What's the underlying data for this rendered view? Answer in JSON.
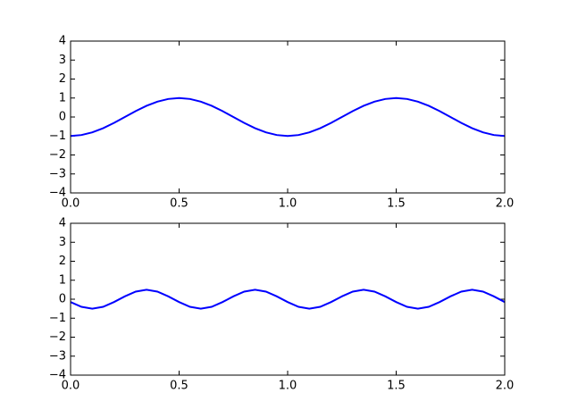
{
  "chart_data": [
    {
      "type": "line",
      "x": [
        0,
        0.05,
        0.1,
        0.15,
        0.2,
        0.25,
        0.3,
        0.35,
        0.4,
        0.45,
        0.5,
        0.55,
        0.6,
        0.65,
        0.7,
        0.75,
        0.8,
        0.85,
        0.9,
        0.95,
        1,
        1.05,
        1.1,
        1.15,
        1.2,
        1.25,
        1.3,
        1.35,
        1.4,
        1.45,
        1.5,
        1.55,
        1.6,
        1.65,
        1.7,
        1.75,
        1.8,
        1.85,
        1.9,
        1.95,
        2
      ],
      "series": [
        {
          "color": "#0000ff",
          "values": [
            -1,
            -0.95,
            -0.81,
            -0.59,
            -0.31,
            0,
            0.31,
            0.59,
            0.81,
            0.95,
            1,
            0.95,
            0.81,
            0.59,
            0.31,
            0,
            -0.31,
            -0.59,
            -0.81,
            -0.95,
            -1,
            -0.95,
            -0.81,
            -0.59,
            -0.31,
            0,
            0.31,
            0.59,
            0.81,
            0.95,
            1,
            0.95,
            0.81,
            0.59,
            0.31,
            0,
            -0.31,
            -0.59,
            -0.81,
            -0.95,
            -1
          ]
        }
      ],
      "xlim": [
        0,
        2
      ],
      "xticks": [
        {
          "value": 0,
          "label": "0.0"
        },
        0.5,
        {
          "value": 1,
          "label": "1.0"
        },
        1.5,
        {
          "value": 2,
          "label": "2.0"
        }
      ],
      "ylim": [
        -4,
        4
      ],
      "yticks": [
        {
          "value": -4,
          "label": "−4"
        },
        {
          "value": -3,
          "label": "−3"
        },
        {
          "value": -2,
          "label": "−2"
        },
        {
          "value": -1,
          "label": "−1"
        },
        0,
        1,
        2,
        3,
        4
      ]
    },
    {
      "type": "line",
      "x": [
        0,
        0.05,
        0.1,
        0.15,
        0.2,
        0.25,
        0.3,
        0.35,
        0.4,
        0.45,
        0.5,
        0.55,
        0.6,
        0.65,
        0.7,
        0.75,
        0.8,
        0.85,
        0.9,
        0.95,
        1,
        1.05,
        1.1,
        1.15,
        1.2,
        1.25,
        1.3,
        1.35,
        1.4,
        1.45,
        1.5,
        1.55,
        1.6,
        1.65,
        1.7,
        1.75,
        1.8,
        1.85,
        1.9,
        1.95,
        2
      ],
      "series": [
        {
          "color": "#0000ff",
          "values": [
            -0.15,
            -0.4,
            -0.5,
            -0.4,
            -0.15,
            0.15,
            0.4,
            0.5,
            0.4,
            0.15,
            -0.15,
            -0.4,
            -0.5,
            -0.4,
            -0.15,
            0.15,
            0.4,
            0.5,
            0.4,
            0.15,
            -0.15,
            -0.4,
            -0.5,
            -0.4,
            -0.15,
            0.15,
            0.4,
            0.5,
            0.4,
            0.15,
            -0.15,
            -0.4,
            -0.5,
            -0.4,
            -0.15,
            0.15,
            0.4,
            0.5,
            0.4,
            0.15,
            -0.15
          ]
        }
      ],
      "xlim": [
        0,
        2
      ],
      "xticks": [
        {
          "value": 0,
          "label": "0.0"
        },
        0.5,
        {
          "value": 1,
          "label": "1.0"
        },
        1.5,
        {
          "value": 2,
          "label": "2.0"
        }
      ],
      "ylim": [
        -4,
        4
      ],
      "yticks": [
        {
          "value": -4,
          "label": "−4"
        },
        {
          "value": -3,
          "label": "−3"
        },
        {
          "value": -2,
          "label": "−2"
        },
        {
          "value": -1,
          "label": "−1"
        },
        0,
        1,
        2,
        3,
        4
      ]
    }
  ]
}
